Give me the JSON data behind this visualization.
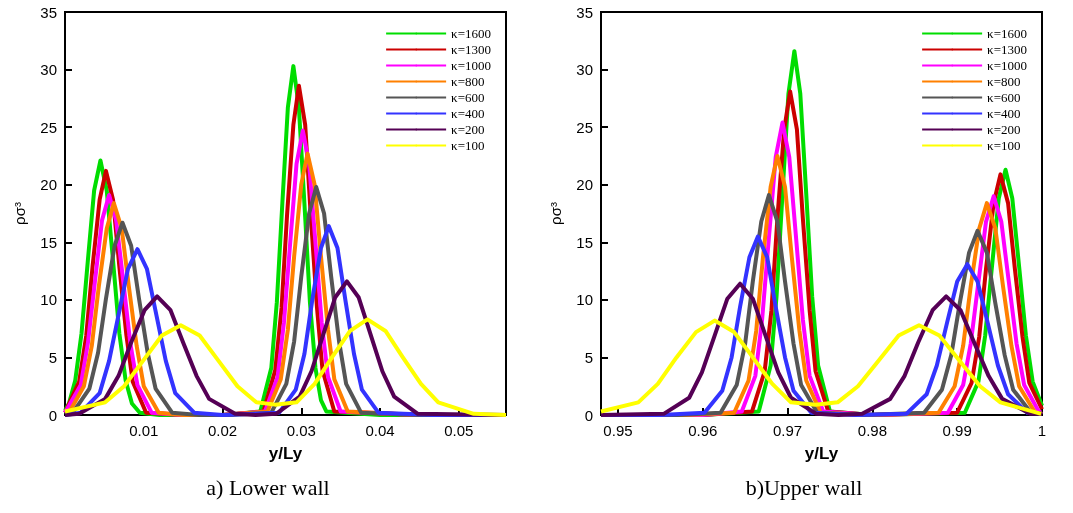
{
  "chart_data": [
    {
      "type": "line",
      "title": "a) Lower wall",
      "xlabel": "y/Ly",
      "ylabel": "ρσ³",
      "xlim": [
        0,
        0.056
      ],
      "xticks": [
        0.01,
        0.02,
        0.03,
        0.04,
        0.05
      ],
      "ylim": [
        0,
        35
      ],
      "yticks": [
        0,
        5,
        10,
        15,
        20,
        25,
        30,
        35
      ],
      "grid": false,
      "legend": "top right",
      "series": [
        {
          "name": "κ=1600",
          "color": "#00dd00",
          "x": [
            0,
            0.0005,
            0.0013,
            0.0021,
            0.0029,
            0.0037,
            0.0045,
            0.0053,
            0.0061,
            0.0069,
            0.0077,
            0.0085,
            0.0095,
            0.012,
            0.02,
            0.0248,
            0.0262,
            0.0269,
            0.0276,
            0.0283,
            0.029,
            0.0297,
            0.0304,
            0.0311,
            0.0318,
            0.0325,
            0.0332,
            0.04,
            0.056
          ],
          "values": [
            0.4,
            1.0,
            3.0,
            7.1,
            13.4,
            19.5,
            22.1,
            19.5,
            13.4,
            7.1,
            3.0,
            1.0,
            0.2,
            0,
            0,
            0.3,
            4.1,
            9.8,
            18.4,
            26.7,
            30.3,
            26.7,
            18.4,
            9.8,
            4.1,
            1.3,
            0.3,
            0,
            0
          ]
        },
        {
          "name": "κ=1300",
          "color": "#cc0000",
          "x": [
            0,
            0.0018,
            0.0027,
            0.0035,
            0.0044,
            0.0052,
            0.0061,
            0.0069,
            0.0078,
            0.0086,
            0.0103,
            0.015,
            0.02,
            0.0252,
            0.0267,
            0.0275,
            0.0282,
            0.029,
            0.0297,
            0.0305,
            0.0312,
            0.032,
            0.0327,
            0.0342,
            0.045,
            0.056
          ],
          "values": [
            0.2,
            2.9,
            6.9,
            12.9,
            18.7,
            21.2,
            18.7,
            12.9,
            6.9,
            2.9,
            0.2,
            0,
            0,
            0.3,
            3.9,
            9.3,
            17.4,
            25.2,
            28.6,
            25.2,
            17.4,
            9.3,
            3.9,
            0.3,
            0,
            0
          ]
        },
        {
          "name": "κ=1000",
          "color": "#ff00ff",
          "x": [
            0,
            0.002,
            0.0029,
            0.0038,
            0.0047,
            0.0056,
            0.0065,
            0.0074,
            0.0083,
            0.0092,
            0.011,
            0.015,
            0.02,
            0.0254,
            0.027,
            0.0278,
            0.0286,
            0.0294,
            0.0302,
            0.031,
            0.0318,
            0.0326,
            0.0334,
            0.035,
            0.045,
            0.056
          ],
          "values": [
            0.2,
            2.6,
            6.2,
            11.6,
            16.9,
            19.1,
            16.9,
            11.6,
            6.2,
            2.6,
            0.2,
            0,
            0,
            0.3,
            3.3,
            8.0,
            15.0,
            21.8,
            24.7,
            21.8,
            15.0,
            8.0,
            3.3,
            0.3,
            0,
            0
          ]
        },
        {
          "name": "κ=800",
          "color": "#ff8000",
          "x": [
            0,
            0.0005,
            0.0024,
            0.0034,
            0.0043,
            0.0053,
            0.0062,
            0.0072,
            0.0081,
            0.0091,
            0.01,
            0.0119,
            0.015,
            0.02,
            0.0257,
            0.0274,
            0.0283,
            0.0291,
            0.03,
            0.0308,
            0.0317,
            0.0325,
            0.0334,
            0.0342,
            0.0359,
            0.045,
            0.056
          ],
          "values": [
            0.1,
            0.2,
            2.5,
            6.0,
            11.2,
            16.2,
            18.4,
            16.2,
            11.2,
            6.0,
            2.5,
            0.2,
            0,
            0,
            0.3,
            3.1,
            7.4,
            13.8,
            20.0,
            22.7,
            20.0,
            13.8,
            7.4,
            3.1,
            0.3,
            0,
            0
          ]
        },
        {
          "name": "κ=600",
          "color": "#555555",
          "x": [
            0,
            0.001,
            0.0031,
            0.0042,
            0.0052,
            0.0063,
            0.0073,
            0.0084,
            0.0094,
            0.0105,
            0.0115,
            0.0136,
            0.017,
            0.021,
            0.0262,
            0.0281,
            0.0291,
            0.03,
            0.031,
            0.0319,
            0.0329,
            0.0338,
            0.0348,
            0.0357,
            0.0376,
            0.045,
            0.056
          ],
          "values": [
            0.1,
            0.2,
            2.3,
            5.4,
            10.1,
            14.7,
            16.7,
            14.7,
            10.1,
            5.4,
            2.3,
            0.2,
            0,
            0,
            0.2,
            2.7,
            6.4,
            12.0,
            17.5,
            19.8,
            17.5,
            12.0,
            6.4,
            2.7,
            0.2,
            0,
            0
          ]
        },
        {
          "name": "κ=400",
          "color": "#3333ff",
          "x": [
            0,
            0.002,
            0.0044,
            0.0056,
            0.0068,
            0.008,
            0.0092,
            0.0104,
            0.0116,
            0.0128,
            0.014,
            0.0164,
            0.02,
            0.0272,
            0.0293,
            0.0304,
            0.0314,
            0.0325,
            0.0335,
            0.0346,
            0.0356,
            0.0367,
            0.0377,
            0.0398,
            0.047,
            0.056
          ],
          "values": [
            0,
            0.2,
            1.9,
            4.7,
            8.7,
            12.7,
            14.4,
            12.7,
            8.7,
            4.7,
            1.9,
            0.2,
            0,
            0.2,
            2.2,
            5.3,
            10.0,
            14.5,
            16.4,
            14.5,
            10.0,
            5.3,
            2.2,
            0.2,
            0,
            0
          ]
        },
        {
          "name": "κ=200",
          "color": "#550055",
          "x": [
            0,
            0.0018,
            0.0051,
            0.0068,
            0.0084,
            0.0101,
            0.0117,
            0.0134,
            0.015,
            0.0167,
            0.0183,
            0.0216,
            0.0242,
            0.0268,
            0.0298,
            0.0313,
            0.0328,
            0.0343,
            0.0358,
            0.0373,
            0.0388,
            0.0403,
            0.0418,
            0.0448,
            0.056
          ],
          "values": [
            0,
            0.1,
            1.4,
            3.4,
            6.3,
            9.1,
            10.3,
            9.1,
            6.3,
            3.4,
            1.4,
            0.1,
            0,
            0.1,
            1.6,
            3.8,
            7.0,
            10.2,
            11.6,
            10.2,
            7.0,
            3.8,
            1.6,
            0.1,
            0
          ]
        },
        {
          "name": "κ=100",
          "color": "#ffff00",
          "x": [
            0,
            0.0051,
            0.0075,
            0.0099,
            0.0123,
            0.0147,
            0.0171,
            0.0195,
            0.0219,
            0.0243,
            0.0267,
            0.0294,
            0.0317,
            0.0339,
            0.0362,
            0.0384,
            0.0407,
            0.0429,
            0.0452,
            0.0474,
            0.0519,
            0.056
          ],
          "values": [
            0.3,
            1.1,
            2.5,
            4.7,
            6.9,
            7.8,
            6.9,
            4.7,
            2.5,
            1.1,
            0.9,
            1.1,
            2.7,
            5.0,
            7.3,
            8.3,
            7.3,
            5.0,
            2.7,
            1.1,
            0.1,
            0
          ]
        }
      ]
    },
    {
      "type": "line",
      "title": "b)Upper wall",
      "xlabel": "y/Ly",
      "ylabel": "ρσ³",
      "xlim": [
        0.948,
        1
      ],
      "xticks": [
        0.95,
        0.96,
        0.97,
        0.98,
        0.99,
        1
      ],
      "ylim": [
        0,
        35
      ],
      "yticks": [
        0,
        5,
        10,
        15,
        20,
        25,
        30,
        35
      ],
      "grid": false,
      "legend": "top right",
      "series": [
        {
          "name": "κ=1600",
          "color": "#00dd00",
          "x": [
            0.948,
            0.96,
            0.9666,
            0.968,
            0.9687,
            0.9694,
            0.9701,
            0.9708,
            0.9715,
            0.9722,
            0.9729,
            0.9736,
            0.975,
            0.98,
            0.9909,
            0.9925,
            0.9933,
            0.9941,
            0.9949,
            0.9957,
            0.9965,
            0.9973,
            0.9981,
            0.9989,
            1
          ],
          "values": [
            0,
            0,
            0.3,
            4.3,
            10.3,
            19.2,
            27.9,
            31.6,
            27.9,
            19.2,
            10.3,
            4.3,
            0.3,
            0,
            0.2,
            2.9,
            6.9,
            12.9,
            18.8,
            21.3,
            18.8,
            12.9,
            6.9,
            2.9,
            0.8
          ]
        },
        {
          "name": "κ=1300",
          "color": "#cc0000",
          "x": [
            0.948,
            0.96,
            0.9658,
            0.9673,
            0.9681,
            0.9688,
            0.9696,
            0.9703,
            0.9711,
            0.9718,
            0.9726,
            0.9733,
            0.9748,
            0.98,
            0.99,
            0.9917,
            0.9926,
            0.9934,
            0.9943,
            0.9951,
            0.996,
            0.9968,
            0.9977,
            0.9985,
            1
          ],
          "values": [
            0,
            0,
            0.3,
            3.8,
            9.1,
            17.1,
            24.8,
            28.1,
            24.8,
            17.1,
            9.1,
            3.8,
            0.3,
            0,
            0.2,
            2.8,
            6.8,
            12.7,
            18.4,
            20.9,
            18.4,
            12.7,
            6.8,
            2.8,
            0.5
          ]
        },
        {
          "name": "κ=1000",
          "color": "#ff00ff",
          "x": [
            0.948,
            0.96,
            0.9646,
            0.9662,
            0.967,
            0.9678,
            0.9686,
            0.9694,
            0.9702,
            0.971,
            0.9718,
            0.9726,
            0.9742,
            0.98,
            0.9889,
            0.9907,
            0.9916,
            0.9925,
            0.9934,
            0.9943,
            0.9952,
            0.9961,
            0.997,
            0.9979,
            0.9997,
            1
          ],
          "values": [
            0,
            0,
            0.3,
            3.4,
            8.3,
            15.4,
            22.4,
            25.4,
            22.4,
            15.4,
            8.3,
            3.4,
            0.3,
            0,
            0.2,
            2.6,
            6.2,
            11.5,
            16.8,
            19.0,
            16.8,
            11.5,
            6.2,
            2.6,
            0.2,
            0.3
          ]
        },
        {
          "name": "κ=800",
          "color": "#ff8000",
          "x": [
            0.948,
            0.958,
            0.9637,
            0.9654,
            0.9663,
            0.9671,
            0.968,
            0.9688,
            0.9697,
            0.9705,
            0.9714,
            0.9722,
            0.9739,
            0.98,
            0.9878,
            0.9897,
            0.9907,
            0.9916,
            0.9926,
            0.9935,
            0.9945,
            0.9954,
            0.9964,
            0.9973,
            0.9992,
            1
          ],
          "values": [
            0,
            0,
            0.2,
            3.0,
            7.3,
            13.7,
            19.8,
            22.5,
            19.8,
            13.7,
            7.3,
            3.0,
            0.2,
            0,
            0.2,
            2.5,
            6.0,
            11.2,
            16.2,
            18.4,
            16.2,
            11.2,
            6.0,
            2.5,
            0.2,
            0.1
          ]
        },
        {
          "name": "κ=600",
          "color": "#555555",
          "x": [
            0.948,
            0.957,
            0.9621,
            0.964,
            0.965,
            0.9659,
            0.9669,
            0.9678,
            0.9688,
            0.9697,
            0.9707,
            0.9716,
            0.9735,
            0.979,
            0.9861,
            0.9882,
            0.9893,
            0.9903,
            0.9914,
            0.9924,
            0.9935,
            0.9945,
            0.9956,
            0.9966,
            0.9987,
            1
          ],
          "values": [
            0,
            0,
            0.2,
            2.6,
            6.2,
            11.6,
            16.8,
            19.1,
            16.8,
            11.6,
            6.2,
            2.6,
            0.2,
            0,
            0.2,
            2.2,
            5.2,
            9.7,
            14.1,
            16.0,
            14.1,
            9.7,
            5.2,
            2.2,
            0.2,
            0.1
          ]
        },
        {
          "name": "κ=400",
          "color": "#3333ff",
          "x": [
            0.948,
            0.955,
            0.9602,
            0.9623,
            0.9634,
            0.9644,
            0.9655,
            0.9665,
            0.9676,
            0.9686,
            0.9697,
            0.9707,
            0.9728,
            0.978,
            0.984,
            0.9864,
            0.9876,
            0.9888,
            0.99,
            0.9912,
            0.9924,
            0.9936,
            0.9948,
            0.996,
            0.9984
          ],
          "values": [
            0,
            0,
            0.2,
            2.1,
            5.0,
            9.4,
            13.7,
            15.5,
            13.7,
            9.4,
            5.0,
            2.1,
            0.2,
            0,
            0.1,
            1.8,
            4.3,
            8.0,
            11.6,
            13.1,
            11.6,
            8.0,
            4.3,
            1.8,
            0.1
          ]
        },
        {
          "name": "κ=200",
          "color": "#550055",
          "x": [
            0.948,
            0.9554,
            0.9584,
            0.9599,
            0.9614,
            0.9629,
            0.9644,
            0.9659,
            0.9674,
            0.9689,
            0.9704,
            0.9734,
            0.976,
            0.9788,
            0.9821,
            0.9838,
            0.9854,
            0.9871,
            0.9887,
            0.9904,
            0.992,
            0.9937,
            0.9953,
            0.9986,
            1
          ],
          "values": [
            0,
            0.1,
            1.5,
            3.7,
            6.9,
            10.1,
            11.4,
            10.1,
            6.9,
            3.7,
            1.5,
            0.1,
            0,
            0.1,
            1.4,
            3.4,
            6.3,
            9.1,
            10.3,
            9.1,
            6.3,
            3.4,
            1.4,
            0.1,
            0.1
          ]
        },
        {
          "name": "κ=100",
          "color": "#ffff00",
          "x": [
            0.948,
            0.9524,
            0.9547,
            0.9569,
            0.9592,
            0.9614,
            0.9637,
            0.9659,
            0.9682,
            0.9704,
            0.9733,
            0.9759,
            0.9783,
            0.9807,
            0.9831,
            0.9855,
            0.9879,
            0.9903,
            0.9927,
            0.9951,
            0.9999
          ],
          "values": [
            0.3,
            1.1,
            2.7,
            5.0,
            7.2,
            8.2,
            7.2,
            5.0,
            2.7,
            1.1,
            0.9,
            1.1,
            2.5,
            4.7,
            6.9,
            7.8,
            6.9,
            4.7,
            2.5,
            1.1,
            0.1
          ]
        }
      ]
    }
  ]
}
